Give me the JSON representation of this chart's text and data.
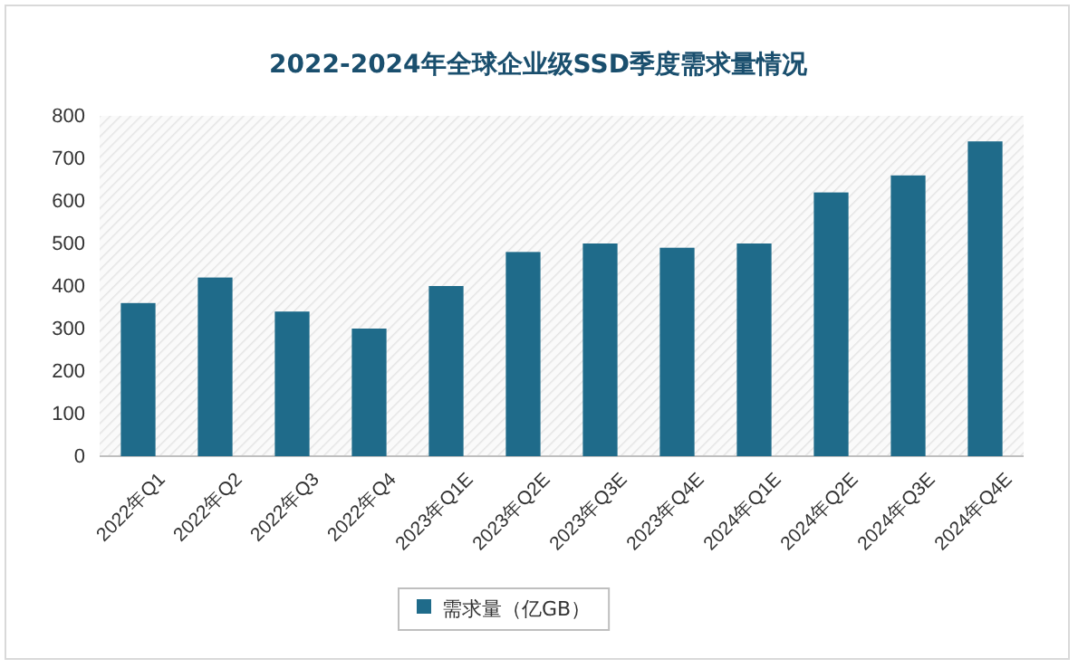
{
  "chart_data": {
    "type": "bar",
    "title": "2022-2024年全球企业级SSD季度需求量情况",
    "categories": [
      "2022年Q1",
      "2022年Q2",
      "2022年Q3",
      "2022年Q4",
      "2023年Q1E",
      "2023年Q2E",
      "2023年Q3E",
      "2023年Q4E",
      "2024年Q1E",
      "2024年Q2E",
      "2024年Q3E",
      "2024年Q4E"
    ],
    "series": [
      {
        "name": "需求量（亿GB）",
        "color": "#1f6b8a",
        "values": [
          360,
          420,
          340,
          300,
          400,
          480,
          500,
          490,
          500,
          620,
          660,
          740
        ]
      }
    ],
    "ylim": [
      0,
      800
    ],
    "yticks": [
      0,
      100,
      200,
      300,
      400,
      500,
      600,
      700,
      800
    ],
    "grid": false,
    "legend": "bottom"
  }
}
